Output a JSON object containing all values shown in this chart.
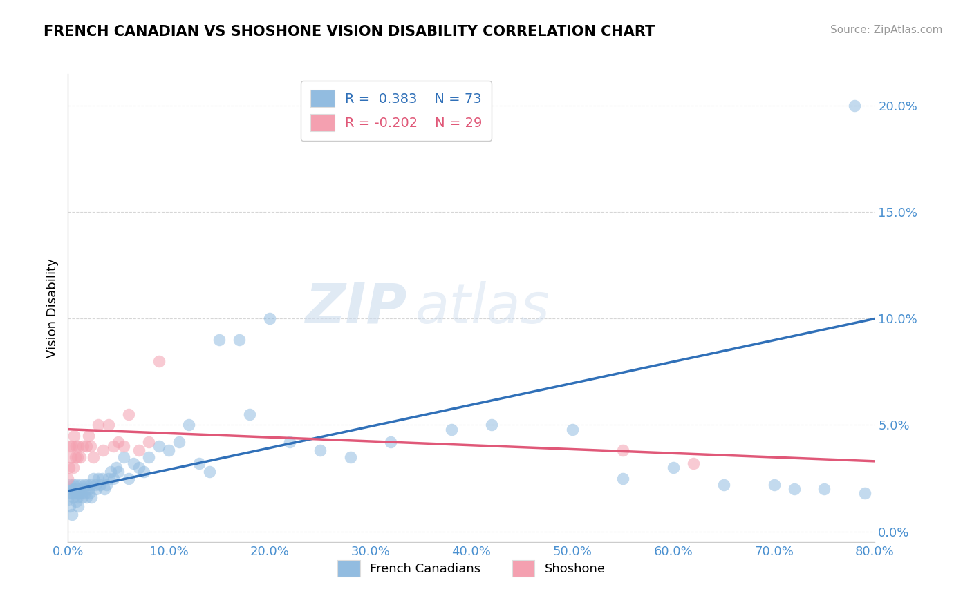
{
  "title": "FRENCH CANADIAN VS SHOSHONE VISION DISABILITY CORRELATION CHART",
  "source": "Source: ZipAtlas.com",
  "ylabel": "Vision Disability",
  "legend_label_blue": "French Canadians",
  "legend_label_pink": "Shoshone",
  "R_blue": 0.383,
  "N_blue": 73,
  "R_pink": -0.202,
  "N_pink": 29,
  "xlim": [
    0.0,
    0.8
  ],
  "ylim": [
    -0.005,
    0.215
  ],
  "xticks": [
    0.0,
    0.1,
    0.2,
    0.3,
    0.4,
    0.5,
    0.6,
    0.7,
    0.8
  ],
  "yticks": [
    0.0,
    0.05,
    0.1,
    0.15,
    0.2
  ],
  "blue_color": "#92bce0",
  "pink_color": "#f4a0b0",
  "blue_line_color": "#3070b8",
  "pink_line_color": "#e05878",
  "watermark_zip": "ZIP",
  "watermark_atlas": "atlas",
  "blue_line_x0": 0.0,
  "blue_line_y0": 0.019,
  "blue_line_x1": 0.8,
  "blue_line_y1": 0.1,
  "pink_line_x0": 0.0,
  "pink_line_y0": 0.048,
  "pink_line_x1": 0.8,
  "pink_line_y1": 0.033,
  "blue_scatter_x": [
    0.0,
    0.001,
    0.002,
    0.002,
    0.003,
    0.004,
    0.004,
    0.005,
    0.005,
    0.006,
    0.007,
    0.008,
    0.008,
    0.009,
    0.01,
    0.01,
    0.011,
    0.012,
    0.013,
    0.014,
    0.015,
    0.016,
    0.017,
    0.018,
    0.019,
    0.02,
    0.021,
    0.022,
    0.023,
    0.025,
    0.027,
    0.028,
    0.03,
    0.032,
    0.034,
    0.036,
    0.038,
    0.04,
    0.042,
    0.045,
    0.048,
    0.05,
    0.055,
    0.06,
    0.065,
    0.07,
    0.075,
    0.08,
    0.09,
    0.1,
    0.11,
    0.12,
    0.13,
    0.14,
    0.15,
    0.17,
    0.18,
    0.2,
    0.22,
    0.25,
    0.28,
    0.32,
    0.38,
    0.42,
    0.5,
    0.55,
    0.6,
    0.65,
    0.7,
    0.72,
    0.75,
    0.78,
    0.79
  ],
  "blue_scatter_y": [
    0.015,
    0.018,
    0.022,
    0.012,
    0.02,
    0.018,
    0.008,
    0.022,
    0.016,
    0.02,
    0.018,
    0.014,
    0.022,
    0.016,
    0.02,
    0.012,
    0.018,
    0.022,
    0.018,
    0.016,
    0.02,
    0.022,
    0.018,
    0.016,
    0.022,
    0.02,
    0.018,
    0.022,
    0.016,
    0.025,
    0.022,
    0.02,
    0.025,
    0.022,
    0.025,
    0.02,
    0.022,
    0.025,
    0.028,
    0.025,
    0.03,
    0.028,
    0.035,
    0.025,
    0.032,
    0.03,
    0.028,
    0.035,
    0.04,
    0.038,
    0.042,
    0.05,
    0.032,
    0.028,
    0.09,
    0.09,
    0.055,
    0.1,
    0.042,
    0.038,
    0.035,
    0.042,
    0.048,
    0.05,
    0.048,
    0.025,
    0.03,
    0.022,
    0.022,
    0.02,
    0.02,
    0.2,
    0.018
  ],
  "pink_scatter_x": [
    0.0,
    0.001,
    0.002,
    0.003,
    0.004,
    0.005,
    0.006,
    0.007,
    0.008,
    0.009,
    0.01,
    0.012,
    0.015,
    0.018,
    0.02,
    0.022,
    0.025,
    0.03,
    0.035,
    0.04,
    0.045,
    0.05,
    0.055,
    0.06,
    0.07,
    0.08,
    0.09,
    0.55,
    0.62
  ],
  "pink_scatter_y": [
    0.025,
    0.03,
    0.04,
    0.035,
    0.04,
    0.03,
    0.045,
    0.035,
    0.04,
    0.035,
    0.04,
    0.035,
    0.04,
    0.04,
    0.045,
    0.04,
    0.035,
    0.05,
    0.038,
    0.05,
    0.04,
    0.042,
    0.04,
    0.055,
    0.038,
    0.042,
    0.08,
    0.038,
    0.032
  ]
}
